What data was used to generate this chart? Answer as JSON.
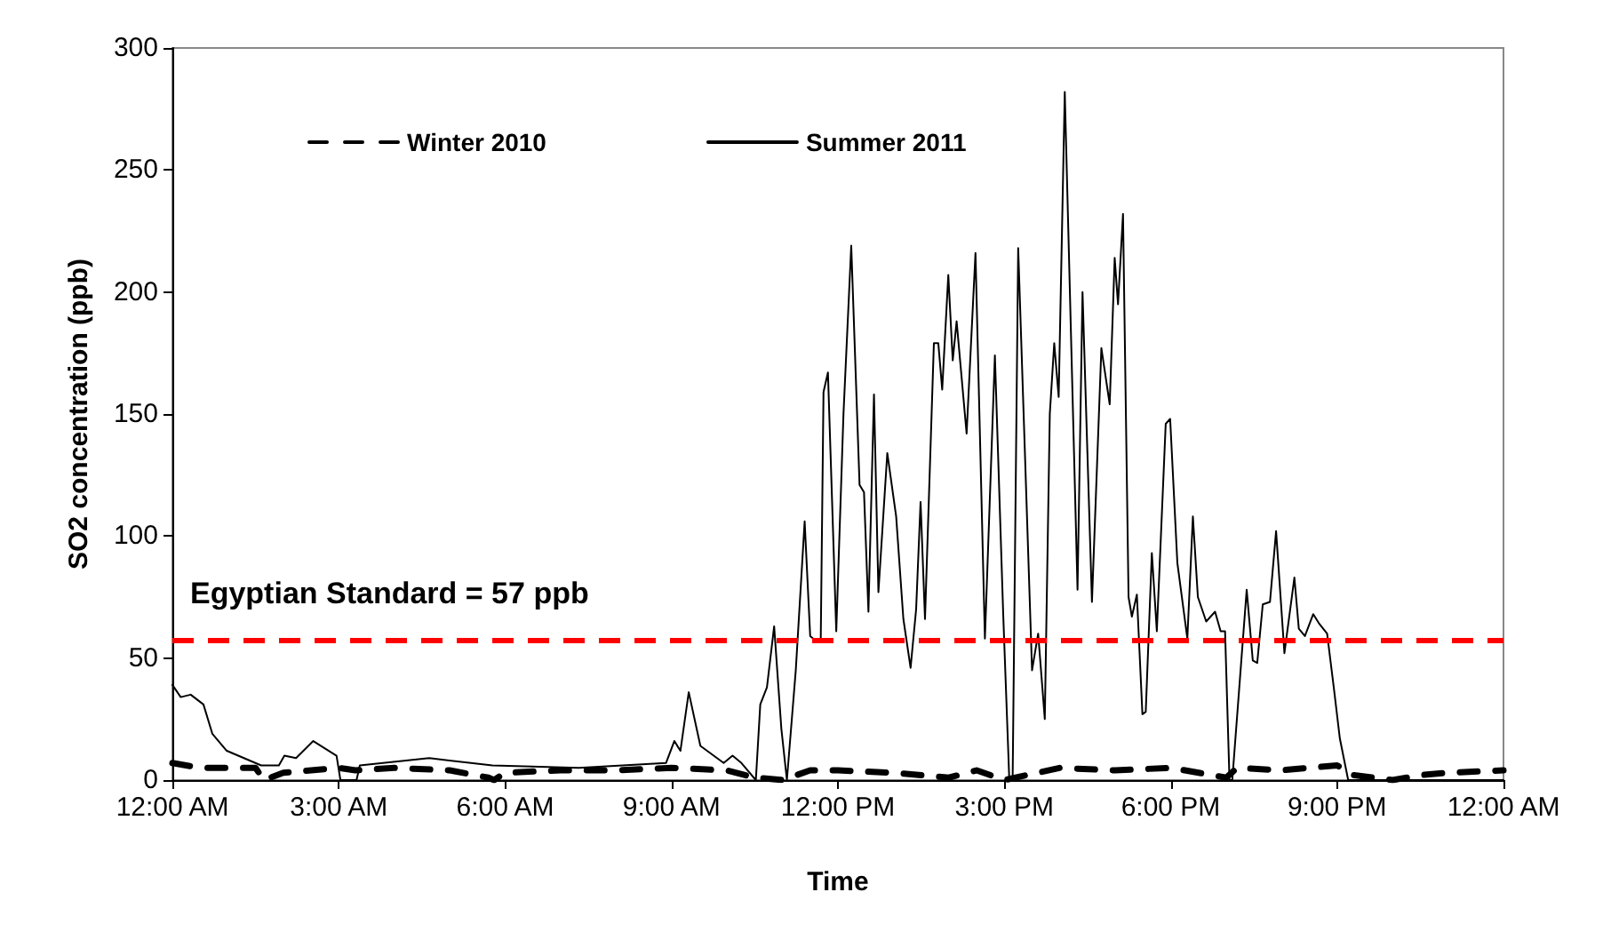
{
  "chart_data": {
    "type": "line",
    "xlabel": "Time",
    "ylabel": "SO2 concentration (ppb)",
    "xlim": [
      0,
      24
    ],
    "xticks": [
      {
        "value": 0,
        "label": "12:00 AM"
      },
      {
        "value": 3,
        "label": "3:00 AM"
      },
      {
        "value": 6,
        "label": "6:00 AM"
      },
      {
        "value": 9,
        "label": "9:00 AM"
      },
      {
        "value": 12,
        "label": "12:00 PM"
      },
      {
        "value": 15,
        "label": "3:00 PM"
      },
      {
        "value": 18,
        "label": "6:00 PM"
      },
      {
        "value": 21,
        "label": "9:00 PM"
      },
      {
        "value": 24,
        "label": "12:00 AM"
      }
    ],
    "ylim": [
      0,
      300
    ],
    "yticks": [
      0,
      50,
      100,
      150,
      200,
      250,
      300
    ],
    "grid": false,
    "legend": "top",
    "marker": "none",
    "ref_lines": [
      {
        "axis": "y",
        "value": 57,
        "label": "Egyptian Standard = 57 ppb",
        "color": "#ff0000",
        "line_style": "dashed"
      }
    ],
    "series": [
      {
        "name": "Winter 2010",
        "color": "#000000",
        "line_style": "dashed",
        "x": [
          0,
          0.5,
          1.5,
          1.65,
          2,
          3,
          3.3,
          4,
          5,
          5.7,
          5.8,
          6,
          7,
          8,
          9,
          10,
          10.5,
          11,
          11.5,
          12,
          13,
          14,
          14.5,
          15,
          16,
          17,
          18,
          19,
          19.2,
          20,
          21,
          21.3,
          22,
          22.5,
          23,
          24
        ],
        "values": [
          7,
          5,
          5,
          0,
          3,
          5,
          4,
          5,
          4,
          1,
          0,
          3,
          4,
          4,
          5,
          4,
          1,
          0,
          4,
          4,
          3,
          1,
          4,
          0,
          5,
          4,
          5,
          1,
          5,
          4,
          6,
          2,
          0,
          2,
          3,
          4
        ]
      },
      {
        "name": "Summer 2011",
        "color": "#000000",
        "line_style": "solid",
        "x": [
          0,
          0.15,
          0.33,
          0.56,
          0.72,
          0.98,
          1.6,
          1.92,
          2.02,
          2.23,
          2.54,
          2.96,
          3.03,
          3.32,
          3.38,
          4.63,
          5.77,
          7.33,
          8.9,
          9.05,
          9.16,
          9.31,
          9.52,
          9.94,
          10.1,
          10.26,
          10.52,
          10.6,
          10.72,
          10.85,
          10.98,
          11.08,
          11.24,
          11.4,
          11.5,
          11.61,
          11.69,
          11.74,
          11.82,
          11.97,
          12.1,
          12.24,
          12.39,
          12.47,
          12.55,
          12.65,
          12.73,
          12.89,
          13.05,
          13.18,
          13.31,
          13.41,
          13.49,
          13.57,
          13.73,
          13.81,
          13.88,
          13.99,
          14.07,
          14.14,
          14.32,
          14.48,
          14.65,
          14.83,
          14.98,
          15.09,
          15.15,
          15.25,
          15.5,
          15.61,
          15.73,
          15.82,
          15.9,
          15.98,
          16.09,
          16.32,
          16.41,
          16.58,
          16.75,
          16.9,
          16.99,
          17.05,
          17.14,
          17.24,
          17.3,
          17.39,
          17.49,
          17.55,
          17.66,
          17.75,
          17.91,
          17.99,
          18.12,
          18.3,
          18.4,
          18.49,
          18.64,
          18.8,
          18.9,
          18.98,
          19.06,
          19.11,
          19.37,
          19.48,
          19.56,
          19.66,
          19.79,
          19.9,
          20.05,
          20.23,
          20.31,
          20.42,
          20.57,
          20.68,
          20.82,
          20.94,
          21.05,
          21.2,
          24
        ],
        "values": [
          39,
          34,
          35,
          31,
          19,
          12,
          6,
          6,
          10,
          9,
          16,
          10,
          0,
          0,
          6,
          9,
          6,
          5,
          7,
          16,
          12,
          36,
          14,
          7,
          10,
          7,
          0,
          31,
          38,
          63,
          21,
          0,
          45,
          106,
          59,
          57,
          57,
          159,
          167,
          61,
          150,
          219,
          121,
          118,
          69,
          158,
          77,
          134,
          108,
          66,
          46,
          70,
          114,
          66,
          179,
          179,
          160,
          207,
          172,
          188,
          142,
          216,
          58,
          174,
          68,
          0,
          0,
          218,
          45,
          60,
          25,
          150,
          179,
          157,
          282,
          78,
          200,
          73,
          177,
          154,
          214,
          195,
          232,
          75,
          67,
          76,
          27,
          28,
          93,
          61,
          146,
          148,
          89,
          58,
          108,
          75,
          65,
          69,
          61,
          61,
          0,
          0,
          78,
          49,
          48,
          72,
          73,
          102,
          52,
          83,
          62,
          59,
          68,
          64,
          60,
          38,
          17,
          0,
          0
        ]
      }
    ]
  }
}
